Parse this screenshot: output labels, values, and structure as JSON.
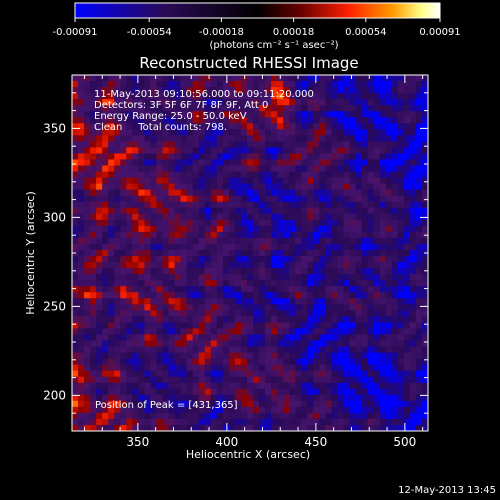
{
  "colorbar": {
    "ticks": [
      "-0.00091",
      "-0.00054",
      "-0.00018",
      "0.00018",
      "0.00054",
      "0.00091"
    ],
    "unit_label": "(photons cm⁻² s⁻¹ asec⁻²)",
    "range": [
      -0.00091,
      0.00091
    ],
    "colors": [
      "#0000ff",
      "#2a0a55",
      "#000000",
      "#6a0000",
      "#ff2000",
      "#ff9a00",
      "#ffff88",
      "#ffffff"
    ]
  },
  "chart_data": {
    "type": "heatmap",
    "title": "Reconstructed RHESSI Image",
    "xlabel": "Heliocentric X (arcsec)",
    "ylabel": "Heliocentric Y (arcsec)",
    "xlim": [
      313,
      513
    ],
    "ylim": [
      180,
      380
    ],
    "x_ticks": [
      350,
      400,
      450,
      500
    ],
    "y_ticks": [
      200,
      250,
      300,
      350
    ],
    "peak": [
      431,
      365
    ],
    "annotations": {
      "time_range": "11-May-2013 09:10:56.000 to 09:11:20.000",
      "detectors": "Detectors: 3F 5F 6F 7F 8F 9F, Att 0",
      "energy_range": "Energy Range: 25.0 - 50.0 keV",
      "clean": "Clean     Total counts: 798.",
      "peak_text": "Position of Peak = [431,365]"
    }
  },
  "footer": {
    "timestamp": "12-May-2013 13:45"
  }
}
